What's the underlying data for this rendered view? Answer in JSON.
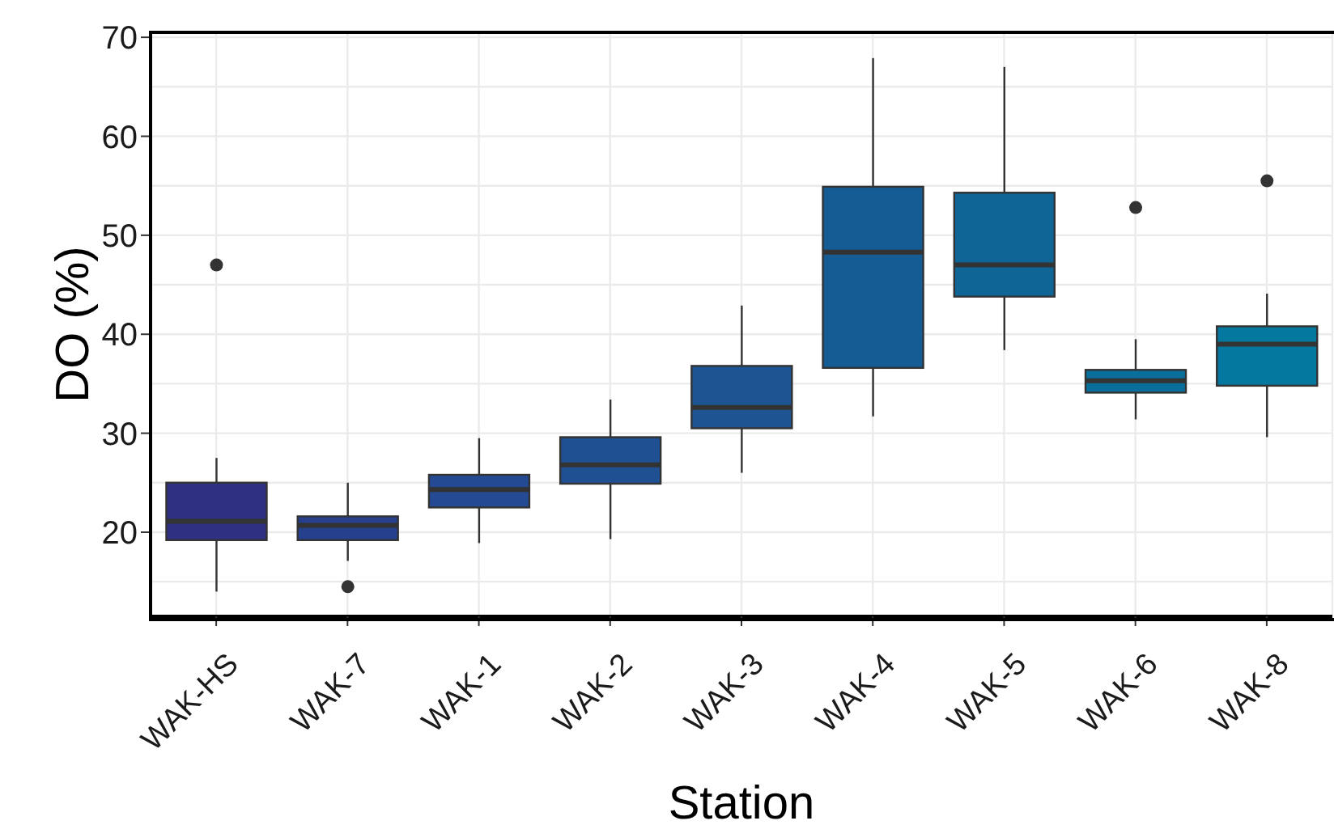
{
  "chart_data": {
    "type": "box",
    "xlabel": "Station",
    "ylabel": "DO (%)",
    "categories": [
      "WAK-HS",
      "WAK-7",
      "WAK-1",
      "WAK-2",
      "WAK-3",
      "WAK-4",
      "WAK-5",
      "WAK-6",
      "WAK-8"
    ],
    "colors": [
      "#2e3182",
      "#27408e",
      "#234a92",
      "#1f5092",
      "#1c5592",
      "#155c94",
      "#0e6596",
      "#0a6e9a",
      "#0578a0"
    ],
    "boxes": [
      {
        "low": 14.0,
        "q1": 19.2,
        "median": 21.1,
        "q3": 25.0,
        "high": 27.5,
        "outliers": [
          47.0
        ]
      },
      {
        "low": 17.1,
        "q1": 19.2,
        "median": 20.7,
        "q3": 21.6,
        "high": 25.0,
        "outliers": [
          14.5
        ]
      },
      {
        "low": 18.9,
        "q1": 22.5,
        "median": 24.3,
        "q3": 25.8,
        "high": 29.5
      },
      {
        "low": 19.3,
        "q1": 24.9,
        "median": 26.8,
        "q3": 29.6,
        "high": 33.4
      },
      {
        "low": 26.0,
        "q1": 30.5,
        "median": 32.6,
        "q3": 36.8,
        "high": 42.9
      },
      {
        "low": 31.7,
        "q1": 36.6,
        "median": 48.3,
        "q3": 54.9,
        "high": 67.9
      },
      {
        "low": 38.4,
        "q1": 43.8,
        "median": 47.0,
        "q3": 54.3,
        "high": 67.0
      },
      {
        "low": 31.4,
        "q1": 34.1,
        "median": 35.3,
        "q3": 36.4,
        "high": 39.5,
        "outliers": [
          52.8
        ]
      },
      {
        "low": 29.6,
        "q1": 34.8,
        "median": 39.0,
        "q3": 40.8,
        "high": 44.1,
        "outliers": [
          55.5
        ]
      }
    ],
    "ylim": [
      11.5,
      70.5
    ],
    "yticks": [
      20,
      30,
      40,
      50,
      60,
      70
    ],
    "grid": true
  }
}
